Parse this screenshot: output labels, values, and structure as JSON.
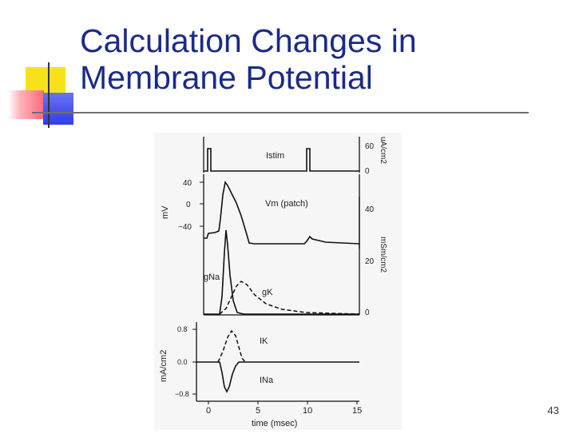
{
  "slide": {
    "title_line1": "Calculation Changes in",
    "title_line2": "Membrane Potential",
    "page_number": "43"
  },
  "colors": {
    "title": "#1b2a8a",
    "deco_yellow": "#f7e21a",
    "deco_red": "#ff6a7a",
    "deco_blue": "#2f3ee8",
    "ink": "#111111"
  },
  "figure": {
    "istim_panel": {
      "trace_label": "Istim",
      "unit_label": "uA/cm2",
      "ticks": [
        "60",
        "0"
      ]
    },
    "vm_panel": {
      "trace_label": "Vm (patch)",
      "unit_label": "mV",
      "ticks": [
        "40",
        "0",
        "−40"
      ]
    },
    "g_panel": {
      "labels": [
        "gNa",
        "gK"
      ],
      "unit_label": "mSm/cm2",
      "ticks": [
        "40",
        "20",
        "0"
      ]
    },
    "i_panel": {
      "labels": [
        "IK",
        "INa"
      ],
      "unit_label": "mA/cm2",
      "ticks": [
        "0.8",
        "0.0",
        "−0.8"
      ]
    },
    "time_axis": {
      "ticks": [
        "0",
        "5",
        "10",
        "15"
      ],
      "label": "time (msec)"
    }
  }
}
